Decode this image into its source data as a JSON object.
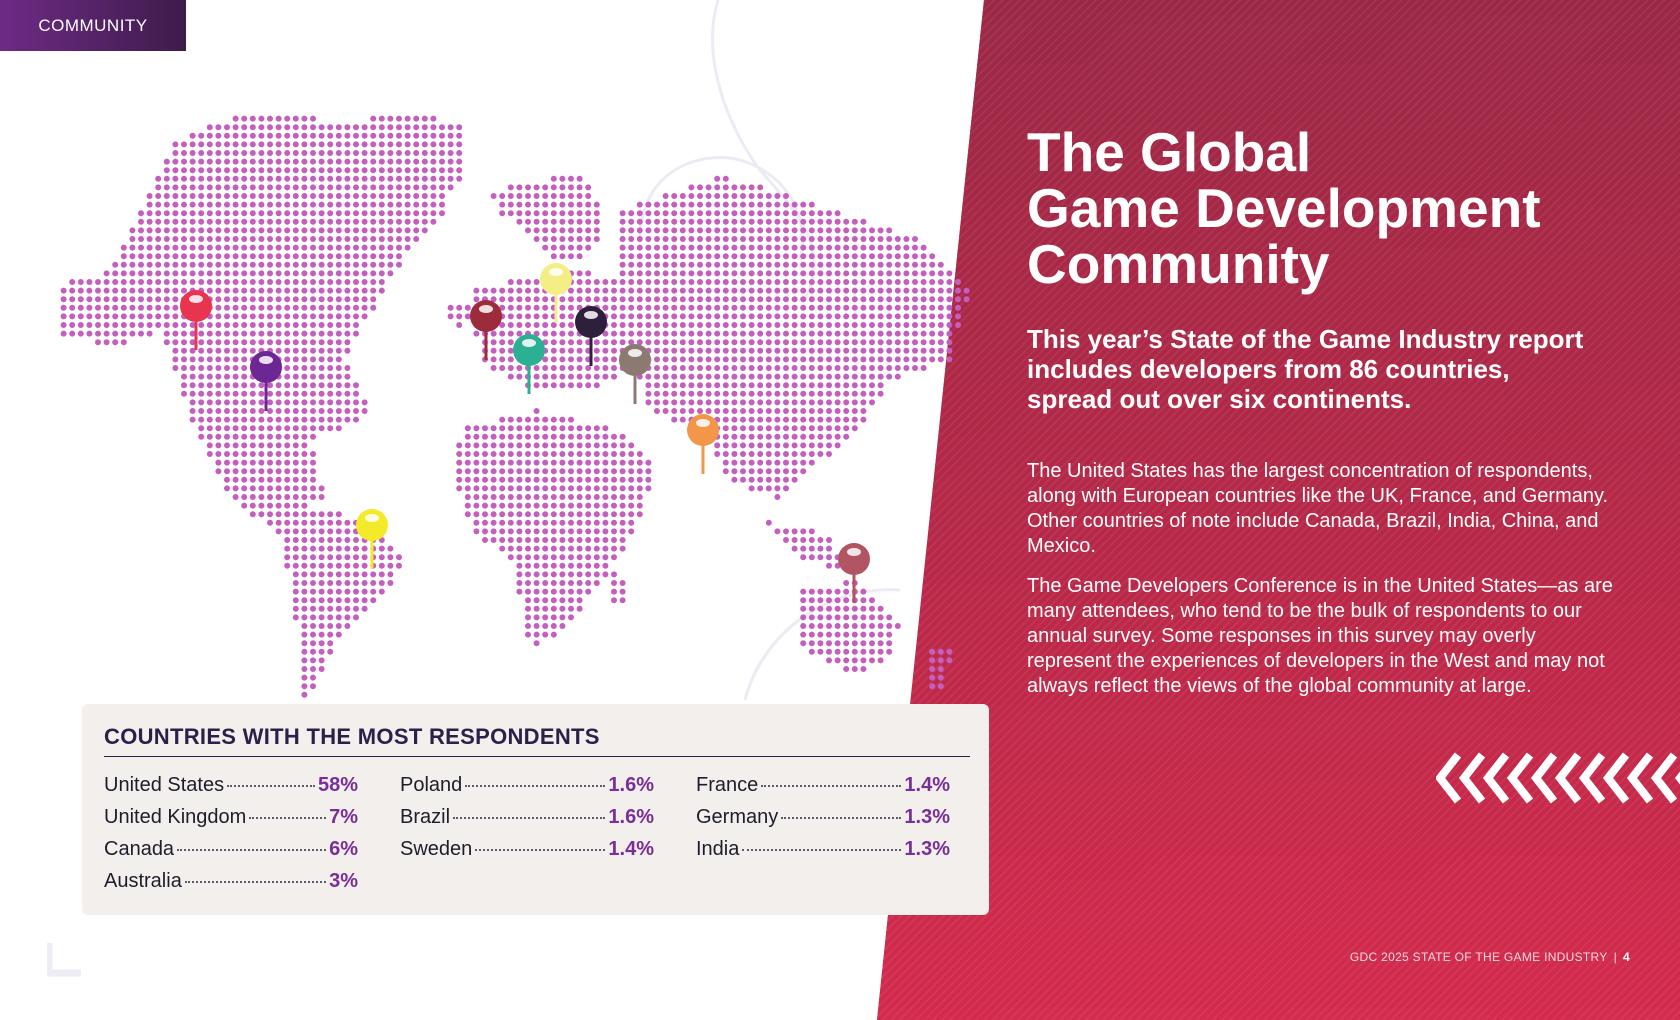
{
  "section_tab": "COMMUNITY",
  "headline": [
    "The Global",
    "Game Development",
    "Community"
  ],
  "subhead": "This year’s State of the Game Industry report includes developers from 86 countries, spread out over six continents.",
  "paragraphs": [
    "The United States has the largest concentration of respondents, along with European countries like the UK, France, and Germany. Other countries of note include Canada, Brazil, India, China, and Mexico.",
    "The Game Developers Conference is in the United States—as are many attendees, who tend to be the bulk of respondents to our annual survey. Some responses in this survey may overly represent the experiences of developers in the West and may not always reflect the views of the global community at large."
  ],
  "card": {
    "title": "COUNTRIES WITH THE MOST RESPONDENTS",
    "columns": [
      [
        {
          "name": "United States",
          "pct": "58%"
        },
        {
          "name": "United Kingdom",
          "pct": "7%"
        },
        {
          "name": "Canada",
          "pct": "6%"
        },
        {
          "name": "Australia",
          "pct": "3%"
        }
      ],
      [
        {
          "name": "Poland",
          "pct": "1.6%"
        },
        {
          "name": "Brazil",
          "pct": "1.6%"
        },
        {
          "name": "Sweden",
          "pct": "1.4%"
        }
      ],
      [
        {
          "name": "France",
          "pct": "1.4%"
        },
        {
          "name": "Germany",
          "pct": "1.3%"
        },
        {
          "name": "India",
          "pct": "1.3%"
        }
      ]
    ]
  },
  "footer": {
    "text": "GDC 2025 STATE OF THE GAME INDUSTRY",
    "separator": "|",
    "page": "4"
  },
  "colors": {
    "map_dot": "#c45fc0",
    "accent_purple": "#7b2d99",
    "panel_red": "#b82848",
    "title_navy": "#2d1f4a"
  },
  "pins": [
    {
      "country": "Canada",
      "color": "#e8344f"
    },
    {
      "country": "United States",
      "color": "#6c2794"
    },
    {
      "country": "Brazil",
      "color": "#f3ea2a"
    },
    {
      "country": "United Kingdom",
      "color": "#9c2b3c"
    },
    {
      "country": "Sweden",
      "color": "#f3ee86"
    },
    {
      "country": "France",
      "color": "#2bb094"
    },
    {
      "country": "Poland",
      "color": "#2e1f3c"
    },
    {
      "country": "Germany",
      "color": "#8c7a72"
    },
    {
      "country": "India",
      "color": "#f2974a"
    },
    {
      "country": "Australia",
      "color": "#b25563"
    }
  ]
}
